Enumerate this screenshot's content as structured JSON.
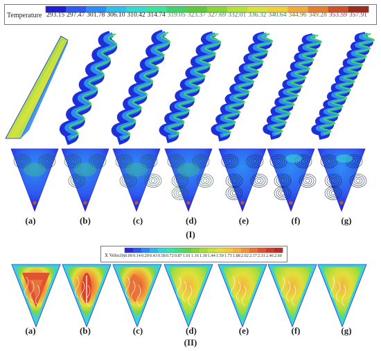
{
  "temperature_legend": {
    "title": "Temperature",
    "ticks": [
      "293.15",
      "297.47",
      "301.78",
      "306.10",
      "310.42",
      "314.74",
      "319.05",
      "323.37",
      "327.69",
      "332.01",
      "336.32",
      "340.64",
      "344.96",
      "349.28",
      "353.59",
      "357.91"
    ],
    "colors": [
      "#1f1fd0",
      "#2f5af0",
      "#2f8cf5",
      "#2fbfe8",
      "#36d9cf",
      "#3be39c",
      "#3fd36a",
      "#5fc83f",
      "#8bd43a",
      "#b6e03a",
      "#d8e23c",
      "#f0cf3f",
      "#f1a83c",
      "#e47f2f",
      "#c8552a",
      "#9a2d1a"
    ],
    "tick_colors": [
      "#222",
      "#222",
      "#222",
      "#222",
      "#222",
      "#222",
      "#2e8b3e",
      "#2e8b3e",
      "#2e8b3e",
      "#2e8b3e",
      "#2e8b3e",
      "#2e8b3e",
      "#8a6a20",
      "#8a6a20",
      "#b0204a",
      "#b0204a"
    ]
  },
  "velocity_legend": {
    "title": "X Velocity",
    "ticks": [
      "0.00",
      "0.14",
      "0.29",
      "0.43",
      "0.58",
      "0.72",
      "0.87",
      "1.01",
      "1.16",
      "1.30",
      "1.44",
      "1.59",
      "1.73",
      "1.88",
      "2.02",
      "2.17",
      "2.31",
      "2.46",
      "2.60"
    ],
    "colors": [
      "#2a2ad8",
      "#2c56ee",
      "#2e86f4",
      "#33b2ec",
      "#38d2d8",
      "#3ee0b0",
      "#47dc7e",
      "#5fd454",
      "#84d440",
      "#a8dc3c",
      "#c8e23c",
      "#e2df3c",
      "#f3cc3e",
      "#f6b03c",
      "#f2923a",
      "#ea7236",
      "#e05232",
      "#cf3a2c",
      "#b62a26"
    ]
  },
  "panels_top": [
    "(a)",
    "(b)",
    "(c)",
    "(d)",
    "(e)",
    "(f)",
    "(g)"
  ],
  "panels_bottom": [
    "(a)",
    "(b)",
    "(c)",
    "(d)",
    "(e)",
    "(f)",
    "(g)"
  ],
  "group_top": "(I)",
  "group_bottom": "(II)"
}
